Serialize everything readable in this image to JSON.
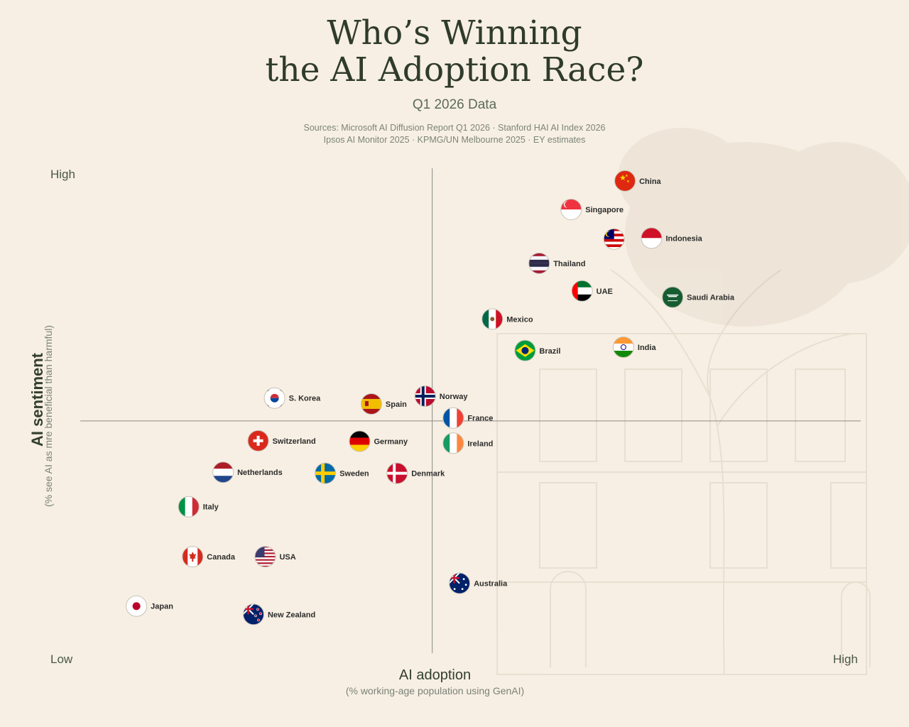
{
  "title_line1": "Who’s Winning",
  "title_line2": "the AI Adoption Race?",
  "subtitle": "Q1 2026 Data",
  "sources_line1": "Sources: Microsoft AI Diffusion Report Q1 2026 · Stanford HAI AI Index 2026",
  "sources_line2": "Ipsos AI Monitor 2025 · KPMG/UN Melbourne 2025 · EY estimates",
  "colors": {
    "background": "#f7efe3",
    "axis": "#8a8a86",
    "title": "#2f3b2c"
  },
  "chart_data": {
    "type": "scatter",
    "title": "Who’s Winning the AI Adoption Race?",
    "subtitle": "Q1 2026 Data",
    "xlabel": "AI adoption",
    "xsublabel": "(% working-age population using GenAI)",
    "ylabel": "AI sentiment",
    "ysublabel": "(% see AI as mre beneficial than harmful)",
    "x_low_label": "Low",
    "x_high_label": "High",
    "y_low_label": "Low",
    "y_high_label": "High",
    "xlim": [
      0,
      100
    ],
    "ylim": [
      0,
      100
    ],
    "grid": false,
    "quadrant_lines": {
      "x": 45.1,
      "y": 47.9
    },
    "points": [
      {
        "label": "China",
        "x": 69.8,
        "y": 97.4,
        "flag": "china-flag-icon"
      },
      {
        "label": "Singapore",
        "x": 62.9,
        "y": 91.5,
        "flag": "singapore-flag-icon"
      },
      {
        "label": "",
        "x": 68.4,
        "y": 85.4,
        "flag": "malaysia-flag-icon"
      },
      {
        "label": "Indonesia",
        "x": 73.2,
        "y": 85.6,
        "flag": "indonesia-flag-icon"
      },
      {
        "label": "Thailand",
        "x": 58.8,
        "y": 80.4,
        "flag": "thailand-flag-icon"
      },
      {
        "label": "UAE",
        "x": 64.3,
        "y": 74.7,
        "flag": "uae-flag-icon"
      },
      {
        "label": "Saudi Arabia",
        "x": 75.9,
        "y": 73.4,
        "flag": "saudi-arabia-flag-icon"
      },
      {
        "label": "Mexico",
        "x": 52.8,
        "y": 68.9,
        "flag": "mexico-flag-icon"
      },
      {
        "label": "India",
        "x": 69.6,
        "y": 63.1,
        "flag": "india-flag-icon"
      },
      {
        "label": "Brazil",
        "x": 57.0,
        "y": 62.4,
        "flag": "brazil-flag-icon"
      },
      {
        "label": "Norway",
        "x": 44.2,
        "y": 53.0,
        "flag": "norway-flag-icon"
      },
      {
        "label": "S. Korea",
        "x": 24.9,
        "y": 52.6,
        "flag": "south-korea-flag-icon"
      },
      {
        "label": "Spain",
        "x": 37.3,
        "y": 51.4,
        "flag": "spain-flag-icon"
      },
      {
        "label": "France",
        "x": 47.8,
        "y": 48.5,
        "flag": "france-flag-icon"
      },
      {
        "label": "Switzerland",
        "x": 22.8,
        "y": 43.8,
        "flag": "switzerland-flag-icon"
      },
      {
        "label": "Germany",
        "x": 35.8,
        "y": 43.7,
        "flag": "germany-flag-icon"
      },
      {
        "label": "Ireland",
        "x": 47.8,
        "y": 43.3,
        "flag": "ireland-flag-icon"
      },
      {
        "label": "Netherlands",
        "x": 18.3,
        "y": 37.3,
        "flag": "netherlands-flag-icon"
      },
      {
        "label": "Sweden",
        "x": 31.4,
        "y": 37.1,
        "flag": "sweden-flag-icon"
      },
      {
        "label": "Denmark",
        "x": 40.6,
        "y": 37.1,
        "flag": "denmark-flag-icon"
      },
      {
        "label": "Italy",
        "x": 13.9,
        "y": 30.2,
        "flag": "italy-flag-icon"
      },
      {
        "label": "Canada",
        "x": 14.4,
        "y": 19.9,
        "flag": "canada-flag-icon"
      },
      {
        "label": "USA",
        "x": 23.7,
        "y": 19.9,
        "flag": "usa-flag-icon"
      },
      {
        "label": "Australia",
        "x": 48.6,
        "y": 14.4,
        "flag": "australia-flag-icon"
      },
      {
        "label": "Japan",
        "x": 7.2,
        "y": 9.7,
        "flag": "japan-flag-icon"
      },
      {
        "label": "New Zealand",
        "x": 22.2,
        "y": 8.0,
        "flag": "new-zealand-flag-icon"
      }
    ]
  }
}
